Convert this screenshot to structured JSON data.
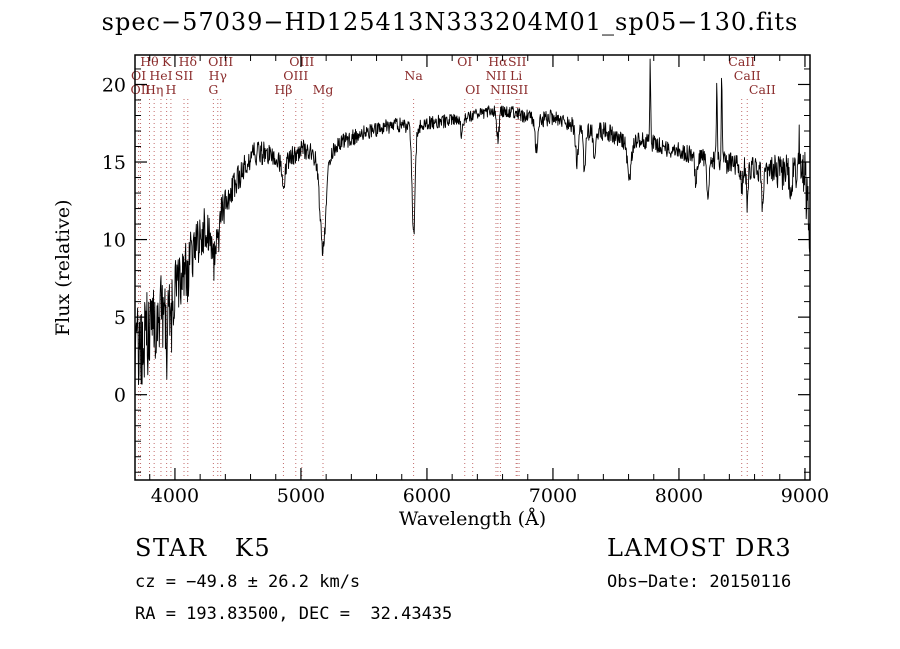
{
  "title": "spec−57039−HD125413N333204M01_sp05−130.fits",
  "annotations": {
    "class_label": "STAR   K5",
    "survey": "LAMOST DR3",
    "cz": "cz = −49.8 ± 26.2 km/s",
    "obs_date": "Obs−Date: 20150116",
    "ra_dec": "RA = 193.83500, DEC =  32.43435"
  },
  "chart_data": {
    "type": "line",
    "title": "spec−57039−HD125413N333204M01_sp05−130.fits",
    "xlabel": "Wavelength (Å)",
    "ylabel": "Flux (relative)",
    "xlim": [
      3683,
      9040
    ],
    "ylim": [
      -5.5,
      21.9
    ],
    "x_ticks": [
      4000,
      5000,
      6000,
      7000,
      8000,
      9000
    ],
    "y_ticks": [
      0,
      5,
      10,
      15,
      20
    ],
    "x_minor_step": 200,
    "y_minor_step": 1,
    "grid": false,
    "legend": "none",
    "colors": {
      "spectrum": "#000000",
      "marker_line": "#c26b6b",
      "marker_label": "#8b2c2c",
      "axis": "#000000"
    },
    "line_markers": [
      {
        "label": "Hθ",
        "wavelength": 3798,
        "row": 1
      },
      {
        "label": "K",
        "wavelength": 3934,
        "row": 1
      },
      {
        "label": "Hδ",
        "wavelength": 4102,
        "row": 1
      },
      {
        "label": "OI",
        "wavelength": 3712,
        "row": 2
      },
      {
        "label": "HeI",
        "wavelength": 3889,
        "row": 2
      },
      {
        "label": "SII",
        "wavelength": 4072,
        "row": 2
      },
      {
        "label": "OII",
        "wavelength": 3727,
        "row": 3
      },
      {
        "label": "Hη",
        "wavelength": 3835,
        "row": 3
      },
      {
        "label": "H",
        "wavelength": 3968,
        "row": 3
      },
      {
        "label": "OIII",
        "wavelength": 4363,
        "row": 1
      },
      {
        "label": "Hγ",
        "wavelength": 4340,
        "row": 2
      },
      {
        "label": "G",
        "wavelength": 4305,
        "row": 3
      },
      {
        "label": "OIII",
        "wavelength": 5007,
        "row": 1
      },
      {
        "label": "OIII",
        "wavelength": 4959,
        "row": 2
      },
      {
        "label": "Hβ",
        "wavelength": 4861,
        "row": 3
      },
      {
        "label": "Mg",
        "wavelength": 5175,
        "row": 3
      },
      {
        "label": "Na",
        "wavelength": 5894,
        "row": 2
      },
      {
        "label": "OI",
        "wavelength": 6300,
        "row": 1
      },
      {
        "label": "Hα",
        "wavelength": 6563,
        "row": 1
      },
      {
        "label": "SII",
        "wavelength": 6716,
        "row": 1
      },
      {
        "label": "NII",
        "wavelength": 6548,
        "row": 2
      },
      {
        "label": "Li",
        "wavelength": 6708,
        "row": 2
      },
      {
        "label": "OI",
        "wavelength": 6363,
        "row": 3
      },
      {
        "label": "NII",
        "wavelength": 6583,
        "row": 3
      },
      {
        "label": "SII",
        "wavelength": 6731,
        "row": 3
      },
      {
        "label": "CaII",
        "wavelength": 8498,
        "row": 1
      },
      {
        "label": "CaII",
        "wavelength": 8542,
        "row": 2
      },
      {
        "label": "CaII",
        "wavelength": 8662,
        "row": 3
      }
    ],
    "spectrum": {
      "continuum_columns": [
        "wavelength",
        "flux"
      ],
      "continuum": [
        [
          3690,
          2.5
        ],
        [
          3720,
          3.0
        ],
        [
          3760,
          3.5
        ],
        [
          3800,
          4.2
        ],
        [
          3850,
          5.0
        ],
        [
          3900,
          5.5
        ],
        [
          3950,
          6.0
        ],
        [
          4000,
          7.0
        ],
        [
          4060,
          8.0
        ],
        [
          4120,
          9.0
        ],
        [
          4180,
          9.8
        ],
        [
          4240,
          10.8
        ],
        [
          4305,
          10.8
        ],
        [
          4360,
          11.5
        ],
        [
          4420,
          12.6
        ],
        [
          4480,
          13.5
        ],
        [
          4550,
          14.8
        ],
        [
          4620,
          15.5
        ],
        [
          4700,
          15.6
        ],
        [
          4780,
          15.3
        ],
        [
          4861,
          15.0
        ],
        [
          4940,
          15.4
        ],
        [
          5020,
          15.8
        ],
        [
          5100,
          15.5
        ],
        [
          5175,
          14.2
        ],
        [
          5250,
          15.8
        ],
        [
          5330,
          16.3
        ],
        [
          5420,
          16.6
        ],
        [
          5500,
          16.9
        ],
        [
          5600,
          17.1
        ],
        [
          5700,
          17.3
        ],
        [
          5800,
          17.4
        ],
        [
          5894,
          17.2
        ],
        [
          6000,
          17.5
        ],
        [
          6100,
          17.6
        ],
        [
          6200,
          17.7
        ],
        [
          6300,
          17.8
        ],
        [
          6400,
          18.1
        ],
        [
          6500,
          18.3
        ],
        [
          6600,
          18.3
        ],
        [
          6700,
          18.2
        ],
        [
          6800,
          17.9
        ],
        [
          6900,
          17.7
        ],
        [
          7000,
          17.9
        ],
        [
          7100,
          17.6
        ],
        [
          7200,
          17.2
        ],
        [
          7300,
          16.9
        ],
        [
          7400,
          17.0
        ],
        [
          7500,
          16.7
        ],
        [
          7600,
          16.2
        ],
        [
          7700,
          16.4
        ],
        [
          7800,
          16.2
        ],
        [
          7900,
          15.9
        ],
        [
          8000,
          15.7
        ],
        [
          8100,
          15.5
        ],
        [
          8200,
          15.2
        ],
        [
          8300,
          15.1
        ],
        [
          8400,
          14.9
        ],
        [
          8500,
          14.8
        ],
        [
          8600,
          14.6
        ],
        [
          8700,
          14.5
        ],
        [
          8800,
          14.4
        ],
        [
          8900,
          14.2
        ],
        [
          8960,
          14.4
        ],
        [
          9000,
          13.8
        ],
        [
          9040,
          11.5
        ]
      ],
      "features_columns": [
        "wavelength",
        "amplitude",
        "sigma"
      ],
      "features": [
        [
          3934,
          -2.5,
          10
        ],
        [
          3968,
          -2.0,
          10
        ],
        [
          4102,
          -1.5,
          10
        ],
        [
          4305,
          -2.3,
          16
        ],
        [
          4340,
          -1.2,
          10
        ],
        [
          4861,
          -2.2,
          10
        ],
        [
          5175,
          -5.0,
          22
        ],
        [
          5894,
          -7.0,
          12
        ],
        [
          6276,
          -1.0,
          8
        ],
        [
          6563,
          -1.8,
          10
        ],
        [
          6870,
          -2.0,
          12
        ],
        [
          7190,
          -2.2,
          10
        ],
        [
          7250,
          -2.8,
          8
        ],
        [
          7330,
          -2.2,
          8
        ],
        [
          7605,
          -2.6,
          14
        ],
        [
          8135,
          -1.8,
          8
        ],
        [
          8230,
          -2.2,
          8
        ],
        [
          8498,
          -1.8,
          7
        ],
        [
          8542,
          -2.4,
          7
        ],
        [
          8662,
          -2.4,
          7
        ],
        [
          8880,
          -1.5,
          6
        ],
        [
          9035,
          -2.5,
          6
        ],
        [
          7772,
          5.2,
          4
        ],
        [
          8300,
          5.0,
          4
        ],
        [
          8340,
          5.6,
          4
        ],
        [
          8955,
          2.0,
          5
        ]
      ],
      "noise_columns": [
        "wavelength",
        "amplitude"
      ],
      "noise": [
        [
          3690,
          3.2
        ],
        [
          3750,
          3.0
        ],
        [
          3850,
          2.6
        ],
        [
          3950,
          2.4
        ],
        [
          4050,
          2.0
        ],
        [
          4150,
          1.7
        ],
        [
          4300,
          1.3
        ],
        [
          4500,
          0.9
        ],
        [
          4700,
          0.75
        ],
        [
          5000,
          0.65
        ],
        [
          5300,
          0.55
        ],
        [
          5600,
          0.5
        ],
        [
          6000,
          0.45
        ],
        [
          6500,
          0.4
        ],
        [
          7000,
          0.5
        ],
        [
          7400,
          0.6
        ],
        [
          7800,
          0.55
        ],
        [
          8200,
          0.6
        ],
        [
          8600,
          0.8
        ],
        [
          8900,
          1.3
        ],
        [
          9040,
          2.2
        ]
      ],
      "sample_step": 3.5,
      "noise_seed": 20150116
    }
  }
}
